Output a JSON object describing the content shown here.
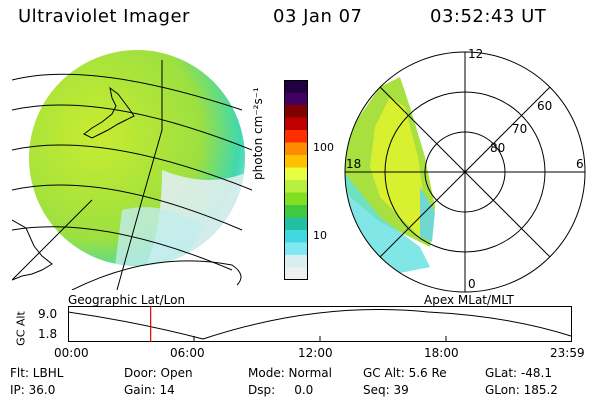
{
  "header": {
    "instrument": "Ultraviolet Imager",
    "date": "03 Jan 07",
    "time": "03:52:43 UT"
  },
  "geo_panel": {
    "label": "Geographic Lat/Lon"
  },
  "polar_panel": {
    "label": "Apex MLat/MLT",
    "mlt_labels": [
      "12",
      "18",
      "6",
      "0"
    ],
    "lat_labels": [
      "60",
      "70",
      "80"
    ]
  },
  "colorbar": {
    "unit": "photon cm⁻²s⁻¹",
    "ticks": [
      "100",
      "10"
    ],
    "colors": [
      "#200040",
      "#400060",
      "#800000",
      "#c00000",
      "#ff3000",
      "#ff8c00",
      "#ffc000",
      "#e6ff40",
      "#b8f040",
      "#80e020",
      "#40c840",
      "#20c0a0",
      "#40d8e0",
      "#80e8f0",
      "#d8eef0",
      "#f0f0f0"
    ]
  },
  "altitude_strip": {
    "ylabel": "GC Alt",
    "ymax": "9.0",
    "ymin": "1.8",
    "xticks": [
      "00:00",
      "06:00",
      "12:00",
      "18:00",
      "23:59"
    ],
    "current_time_marker_fraction": 0.164
  },
  "info": {
    "flt": "Flt: LBHL",
    "ip": "IP: 36.0",
    "door": "Door: Open",
    "gain": "Gain: 14",
    "mode": "Mode: Normal",
    "dsp": "Dsp:     0.0",
    "gcalt": "GC Alt: 5.6 Re",
    "seq": "Seq: 39",
    "glat": "GLat: -48.1",
    "glon": "GLon: 185.2"
  }
}
